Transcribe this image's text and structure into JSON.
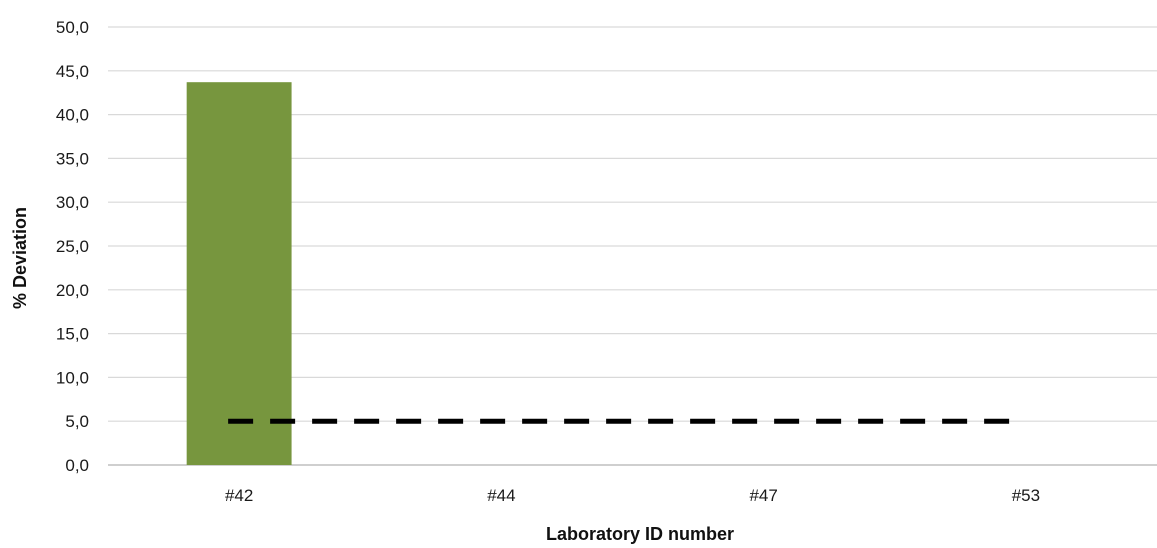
{
  "chart_data": {
    "type": "bar",
    "title": "",
    "xlabel": "Laboratory ID number",
    "ylabel": "% Deviation",
    "categories": [
      "#42",
      "#44",
      "#47",
      "#53"
    ],
    "values": [
      43.7,
      0,
      0,
      0
    ],
    "yticks": [
      "0,0",
      "5,0",
      "10,0",
      "15,0",
      "20,0",
      "25,0",
      "30,0",
      "35,0",
      "40,0",
      "45,0",
      "50,0"
    ],
    "ylim": [
      0,
      50
    ],
    "ytick_step": 5,
    "grid": true,
    "legend": "none",
    "reference_line": {
      "value": 5,
      "style": "dashed",
      "from_category": "#42",
      "to_category": "#53",
      "color": "#000000"
    },
    "colors": {
      "bar": "#77963e",
      "grid": "#d9d9d9",
      "axis": "#bfbfbf"
    }
  }
}
